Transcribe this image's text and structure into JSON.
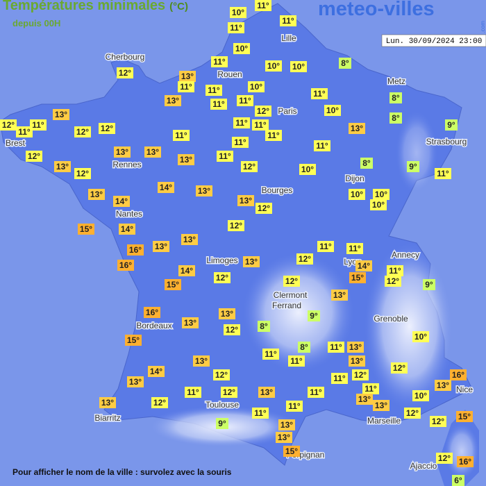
{
  "header": {
    "title": "Températures minimales",
    "unit": "(°C)",
    "subtitle": "depuis 00H",
    "logo": "meteo-villes",
    "logo_suffix": ".com",
    "date": "Lun. 30/09/2024 23:00"
  },
  "footer": "Pour afficher le nom de la ville : survolez avec la souris",
  "color_scale": [
    {
      "upto": 9,
      "color": "#ccff66"
    },
    {
      "upto": 12,
      "color": "#ffff55"
    },
    {
      "upto": 14,
      "color": "#ffcc44"
    },
    {
      "color": "#ffb030"
    }
  ],
  "cities": [
    "Cherbourg",
    "Rouen",
    "Lille",
    "Paris",
    "Metz",
    "Strasbourg",
    "Brest",
    "Rennes",
    "Nantes",
    "Dijon",
    "Bourges",
    "Annecy",
    "Limoges",
    "Lyon",
    "Clermont",
    "Ferrand",
    "Grenoble",
    "Bordeaux",
    "Nice",
    "Toulouse",
    "Marseille",
    "Biarritz",
    "Perpignan",
    "Ajaccio"
  ],
  "temperatures": [
    {
      "value": 11,
      "label": "11°"
    },
    {
      "value": 10,
      "label": "10°"
    },
    {
      "value": 11,
      "label": "11°"
    },
    {
      "value": 11,
      "label": "11°"
    },
    {
      "value": 10,
      "label": "10°"
    },
    {
      "value": 8,
      "label": "8°"
    },
    {
      "value": 11,
      "label": "11°"
    },
    {
      "value": 10,
      "label": "10°"
    },
    {
      "value": 10,
      "label": "10°"
    },
    {
      "value": 12,
      "label": "12°"
    },
    {
      "value": 13,
      "label": "13°"
    },
    {
      "value": 11,
      "label": "11°"
    },
    {
      "value": 11,
      "label": "11°"
    },
    {
      "value": 10,
      "label": "10°"
    },
    {
      "value": 8,
      "label": "8°"
    },
    {
      "value": 8,
      "label": "8°"
    },
    {
      "value": 13,
      "label": "13°"
    },
    {
      "value": 11,
      "label": "11°"
    },
    {
      "value": 11,
      "label": "11°"
    },
    {
      "value": 11,
      "label": "11°"
    },
    {
      "value": 12,
      "label": "12°"
    },
    {
      "value": 10,
      "label": "10°"
    },
    {
      "value": 13,
      "label": "13°"
    },
    {
      "value": 12,
      "label": "12°"
    },
    {
      "value": 11,
      "label": "11°"
    },
    {
      "value": 11,
      "label": "11°"
    },
    {
      "value": 12,
      "label": "12°"
    },
    {
      "value": 12,
      "label": "12°"
    },
    {
      "value": 11,
      "label": "11°"
    },
    {
      "value": 11,
      "label": "11°"
    },
    {
      "value": 13,
      "label": "13°"
    },
    {
      "value": 9,
      "label": "9°"
    },
    {
      "value": 11,
      "label": "11°"
    },
    {
      "value": 11,
      "label": "11°"
    },
    {
      "value": 11,
      "label": "11°"
    },
    {
      "value": 11,
      "label": "11°"
    },
    {
      "value": 12,
      "label": "12°"
    },
    {
      "value": 13,
      "label": "13°"
    },
    {
      "value": 13,
      "label": "13°"
    },
    {
      "value": 13,
      "label": "13°"
    },
    {
      "value": 11,
      "label": "11°"
    },
    {
      "value": 13,
      "label": "13°"
    },
    {
      "value": 12,
      "label": "12°"
    },
    {
      "value": 12,
      "label": "12°"
    },
    {
      "value": 10,
      "label": "10°"
    },
    {
      "value": 8,
      "label": "8°"
    },
    {
      "value": 9,
      "label": "9°"
    },
    {
      "value": 11,
      "label": "11°"
    },
    {
      "value": 14,
      "label": "14°"
    },
    {
      "value": 13,
      "label": "13°"
    },
    {
      "value": 13,
      "label": "13°"
    },
    {
      "value": 14,
      "label": "14°"
    },
    {
      "value": 13,
      "label": "13°"
    },
    {
      "value": 12,
      "label": "12°"
    },
    {
      "value": 10,
      "label": "10°"
    },
    {
      "value": 10,
      "label": "10°"
    },
    {
      "value": 10,
      "label": "10°"
    },
    {
      "value": 15,
      "label": "15°"
    },
    {
      "value": 14,
      "label": "14°"
    },
    {
      "value": 12,
      "label": "12°"
    },
    {
      "value": 13,
      "label": "13°"
    },
    {
      "value": 13,
      "label": "13°"
    },
    {
      "value": 16,
      "label": "16°"
    },
    {
      "value": 16,
      "label": "16°"
    },
    {
      "value": 11,
      "label": "11°"
    },
    {
      "value": 11,
      "label": "11°"
    },
    {
      "value": 12,
      "label": "12°"
    },
    {
      "value": 13,
      "label": "13°"
    },
    {
      "value": 14,
      "label": "14°"
    },
    {
      "value": 11,
      "label": "11°"
    },
    {
      "value": 14,
      "label": "14°"
    },
    {
      "value": 15,
      "label": "15°"
    },
    {
      "value": 12,
      "label": "12°"
    },
    {
      "value": 9,
      "label": "9°"
    },
    {
      "value": 15,
      "label": "15°"
    },
    {
      "value": 12,
      "label": "12°"
    },
    {
      "value": 12,
      "label": "12°"
    },
    {
      "value": 13,
      "label": "13°"
    },
    {
      "value": 16,
      "label": "16°"
    },
    {
      "value": 13,
      "label": "13°"
    },
    {
      "value": 9,
      "label": "9°"
    },
    {
      "value": 13,
      "label": "13°"
    },
    {
      "value": 12,
      "label": "12°"
    },
    {
      "value": 8,
      "label": "8°"
    },
    {
      "value": 15,
      "label": "15°"
    },
    {
      "value": 10,
      "label": "10°"
    },
    {
      "value": 8,
      "label": "8°"
    },
    {
      "value": 11,
      "label": "11°"
    },
    {
      "value": 13,
      "label": "13°"
    },
    {
      "value": 11,
      "label": "11°"
    },
    {
      "value": 11,
      "label": "11°"
    },
    {
      "value": 13,
      "label": "13°"
    },
    {
      "value": 12,
      "label": "12°"
    },
    {
      "value": 13,
      "label": "13°"
    },
    {
      "value": 14,
      "label": "14°"
    },
    {
      "value": 12,
      "label": "12°"
    },
    {
      "value": 16,
      "label": "16°"
    },
    {
      "value": 13,
      "label": "13°"
    },
    {
      "value": 12,
      "label": "12°"
    },
    {
      "value": 11,
      "label": "11°"
    },
    {
      "value": 13,
      "label": "13°"
    },
    {
      "value": 11,
      "label": "11°"
    },
    {
      "value": 11,
      "label": "11°"
    },
    {
      "value": 12,
      "label": "12°"
    },
    {
      "value": 13,
      "label": "13°"
    },
    {
      "value": 11,
      "label": "11°"
    },
    {
      "value": 13,
      "label": "13°"
    },
    {
      "value": 10,
      "label": "10°"
    },
    {
      "value": 13,
      "label": "13°"
    },
    {
      "value": 12,
      "label": "12°"
    },
    {
      "value": 13,
      "label": "13°"
    },
    {
      "value": 11,
      "label": "11°"
    },
    {
      "value": 11,
      "label": "11°"
    },
    {
      "value": 12,
      "label": "12°"
    },
    {
      "value": 15,
      "label": "15°"
    },
    {
      "value": 12,
      "label": "12°"
    },
    {
      "value": 9,
      "label": "9°"
    },
    {
      "value": 13,
      "label": "13°"
    },
    {
      "value": 13,
      "label": "13°"
    },
    {
      "value": 15,
      "label": "15°"
    },
    {
      "value": 12,
      "label": "12°"
    },
    {
      "value": 16,
      "label": "16°"
    },
    {
      "value": 6,
      "label": "6°"
    }
  ]
}
